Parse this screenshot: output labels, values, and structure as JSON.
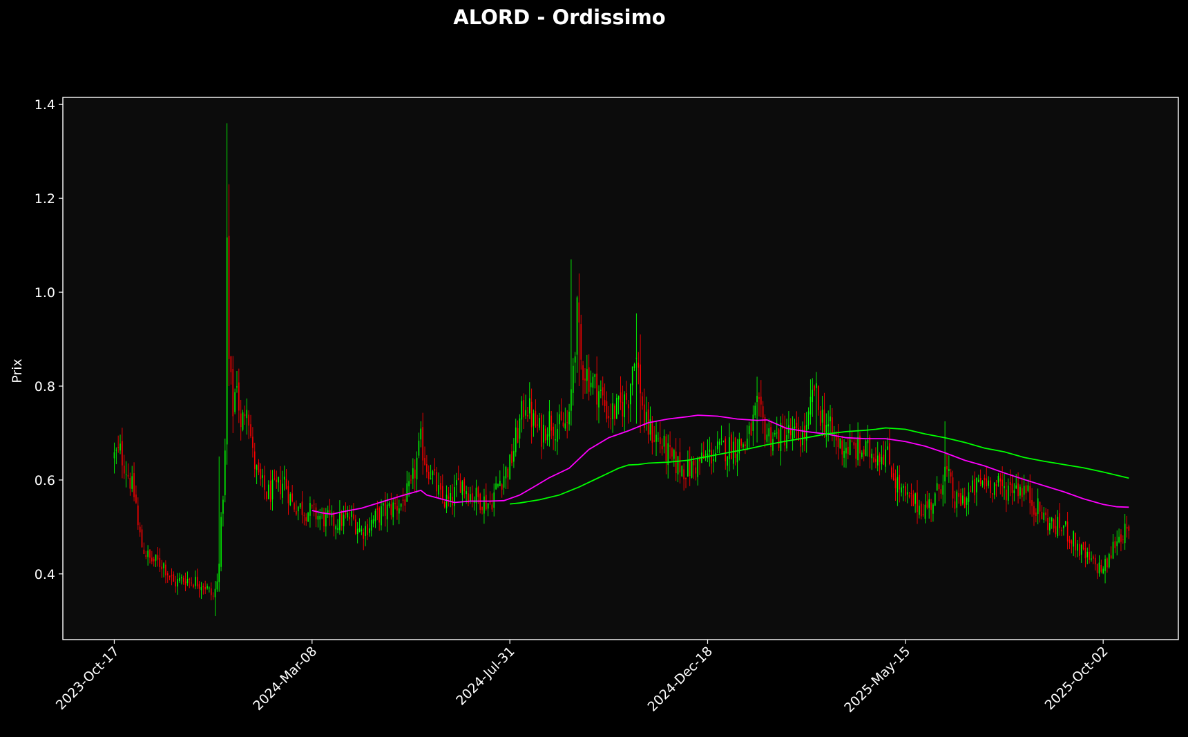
{
  "chart_data": {
    "type": "candlestick",
    "title": "ALORD - Ordissimo",
    "ylabel": "Prix",
    "xlabel": "",
    "ylim": [
      0.26,
      1.415
    ],
    "yticks": [
      0.4,
      0.6,
      0.8,
      1.0,
      1.2,
      1.4
    ],
    "ytick_labels": [
      "0.4",
      "0.6",
      "0.8",
      "1.0",
      "1.2",
      "1.4"
    ],
    "xticks": [
      "2023-Oct-17",
      "2024-Mar-08",
      "2024-Jul-31",
      "2024-Dec-18",
      "2025-May-15",
      "2025-Oct-02"
    ],
    "xlim_index": [
      -26,
      538
    ],
    "xtick_index": [
      0,
      100,
      200,
      300,
      400,
      500
    ],
    "grid": false,
    "colors": {
      "background": "#000000",
      "plot_background": "#0c0c0c",
      "up": "#00ff00",
      "down": "#ff0000",
      "ma_short": "#ff00ff",
      "ma_long": "#00ff00",
      "text": "#ffffff"
    },
    "anchors": [
      [
        0,
        0.65
      ],
      [
        3,
        0.66
      ],
      [
        8,
        0.6
      ],
      [
        11,
        0.55
      ],
      [
        12,
        0.5
      ],
      [
        14,
        0.46
      ],
      [
        18,
        0.43
      ],
      [
        25,
        0.42
      ],
      [
        30,
        0.38
      ],
      [
        36,
        0.39
      ],
      [
        45,
        0.38
      ],
      [
        50,
        0.35
      ],
      [
        52,
        0.38
      ],
      [
        54,
        0.5
      ],
      [
        56,
        0.65
      ],
      [
        57,
        1.1
      ],
      [
        58,
        0.85
      ],
      [
        60,
        0.75
      ],
      [
        62,
        0.82
      ],
      [
        64,
        0.7
      ],
      [
        67,
        0.78
      ],
      [
        70,
        0.65
      ],
      [
        73,
        0.6
      ],
      [
        77,
        0.57
      ],
      [
        82,
        0.58
      ],
      [
        86,
        0.6
      ],
      [
        90,
        0.55
      ],
      [
        95,
        0.54
      ],
      [
        100,
        0.53
      ],
      [
        110,
        0.51
      ],
      [
        120,
        0.52
      ],
      [
        125,
        0.49
      ],
      [
        135,
        0.53
      ],
      [
        145,
        0.55
      ],
      [
        150,
        0.58
      ],
      [
        155,
        0.68
      ],
      [
        158,
        0.63
      ],
      [
        160,
        0.62
      ],
      [
        165,
        0.56
      ],
      [
        170,
        0.55
      ],
      [
        175,
        0.6
      ],
      [
        180,
        0.57
      ],
      [
        185,
        0.56
      ],
      [
        190,
        0.55
      ],
      [
        195,
        0.6
      ],
      [
        200,
        0.63
      ],
      [
        205,
        0.72
      ],
      [
        208,
        0.77
      ],
      [
        212,
        0.72
      ],
      [
        216,
        0.7
      ],
      [
        220,
        0.73
      ],
      [
        225,
        0.71
      ],
      [
        230,
        0.72
      ],
      [
        232,
        0.85
      ],
      [
        234,
        0.95
      ],
      [
        236,
        0.85
      ],
      [
        240,
        0.82
      ],
      [
        245,
        0.79
      ],
      [
        250,
        0.74
      ],
      [
        255,
        0.75
      ],
      [
        260,
        0.78
      ],
      [
        263,
        0.88
      ],
      [
        266,
        0.8
      ],
      [
        268,
        0.72
      ],
      [
        272,
        0.7
      ],
      [
        276,
        0.68
      ],
      [
        282,
        0.64
      ],
      [
        290,
        0.62
      ],
      [
        300,
        0.65
      ],
      [
        310,
        0.67
      ],
      [
        320,
        0.68
      ],
      [
        325,
        0.75
      ],
      [
        330,
        0.7
      ],
      [
        335,
        0.69
      ],
      [
        340,
        0.7
      ],
      [
        345,
        0.69
      ],
      [
        350,
        0.7
      ],
      [
        354,
        0.8
      ],
      [
        356,
        0.75
      ],
      [
        360,
        0.72
      ],
      [
        365,
        0.68
      ],
      [
        370,
        0.67
      ],
      [
        380,
        0.66
      ],
      [
        390,
        0.66
      ],
      [
        395,
        0.6
      ],
      [
        400,
        0.56
      ],
      [
        405,
        0.55
      ],
      [
        410,
        0.54
      ],
      [
        415,
        0.56
      ],
      [
        420,
        0.62
      ],
      [
        422,
        0.6
      ],
      [
        425,
        0.55
      ],
      [
        430,
        0.56
      ],
      [
        435,
        0.58
      ],
      [
        440,
        0.6
      ],
      [
        445,
        0.59
      ],
      [
        450,
        0.58
      ],
      [
        455,
        0.59
      ],
      [
        460,
        0.58
      ],
      [
        465,
        0.55
      ],
      [
        470,
        0.52
      ],
      [
        475,
        0.5
      ],
      [
        480,
        0.5
      ],
      [
        485,
        0.47
      ],
      [
        490,
        0.44
      ],
      [
        495,
        0.42
      ],
      [
        500,
        0.41
      ],
      [
        503,
        0.43
      ],
      [
        506,
        0.47
      ],
      [
        510,
        0.49
      ],
      [
        513,
        0.48
      ]
    ],
    "spikes": [
      {
        "i": 57,
        "high": 1.36,
        "low": 0.7
      },
      {
        "i": 58,
        "high": 1.23,
        "low": 0.8
      },
      {
        "i": 53,
        "high": 0.65,
        "low": 0.42
      },
      {
        "i": 51,
        "high": 0.38,
        "low": 0.31
      },
      {
        "i": 231,
        "high": 1.07,
        "low": 0.75
      },
      {
        "i": 235,
        "high": 1.04,
        "low": 0.8
      },
      {
        "i": 264,
        "high": 0.955,
        "low": 0.72
      },
      {
        "i": 266,
        "high": 0.91,
        "low": 0.7
      },
      {
        "i": 325,
        "high": 0.82,
        "low": 0.68
      },
      {
        "i": 355,
        "high": 0.83,
        "low": 0.7
      },
      {
        "i": 420,
        "high": 0.725,
        "low": 0.55
      },
      {
        "i": 501,
        "high": 0.44,
        "low": 0.38
      }
    ],
    "series": [
      {
        "type": "line",
        "color": "#ff00ff",
        "points": [
          [
            100,
            0.535
          ],
          [
            105,
            0.53
          ],
          [
            110,
            0.527
          ],
          [
            115,
            0.532
          ],
          [
            125,
            0.54
          ],
          [
            135,
            0.553
          ],
          [
            145,
            0.566
          ],
          [
            155,
            0.578
          ],
          [
            158,
            0.568
          ],
          [
            165,
            0.56
          ],
          [
            172,
            0.552
          ],
          [
            180,
            0.555
          ],
          [
            190,
            0.555
          ],
          [
            197,
            0.556
          ],
          [
            205,
            0.568
          ],
          [
            212,
            0.585
          ],
          [
            220,
            0.605
          ],
          [
            230,
            0.625
          ],
          [
            240,
            0.665
          ],
          [
            250,
            0.69
          ],
          [
            260,
            0.705
          ],
          [
            270,
            0.722
          ],
          [
            280,
            0.73
          ],
          [
            290,
            0.735
          ],
          [
            295,
            0.738
          ],
          [
            305,
            0.736
          ],
          [
            315,
            0.73
          ],
          [
            325,
            0.727
          ],
          [
            330,
            0.728
          ],
          [
            340,
            0.71
          ],
          [
            350,
            0.703
          ],
          [
            360,
            0.698
          ],
          [
            370,
            0.69
          ],
          [
            380,
            0.688
          ],
          [
            390,
            0.688
          ],
          [
            400,
            0.682
          ],
          [
            410,
            0.672
          ],
          [
            420,
            0.658
          ],
          [
            430,
            0.642
          ],
          [
            440,
            0.63
          ],
          [
            450,
            0.615
          ],
          [
            460,
            0.601
          ],
          [
            470,
            0.588
          ],
          [
            480,
            0.575
          ],
          [
            490,
            0.56
          ],
          [
            500,
            0.548
          ],
          [
            507,
            0.543
          ],
          [
            513,
            0.542
          ]
        ]
      },
      {
        "type": "line",
        "color": "#00ff00",
        "points": [
          [
            200,
            0.549
          ],
          [
            205,
            0.551
          ],
          [
            215,
            0.558
          ],
          [
            225,
            0.568
          ],
          [
            235,
            0.585
          ],
          [
            245,
            0.605
          ],
          [
            255,
            0.625
          ],
          [
            260,
            0.632
          ],
          [
            265,
            0.633
          ],
          [
            270,
            0.636
          ],
          [
            280,
            0.638
          ],
          [
            290,
            0.642
          ],
          [
            300,
            0.65
          ],
          [
            310,
            0.658
          ],
          [
            320,
            0.666
          ],
          [
            330,
            0.675
          ],
          [
            340,
            0.683
          ],
          [
            350,
            0.69
          ],
          [
            360,
            0.698
          ],
          [
            370,
            0.703
          ],
          [
            380,
            0.706
          ],
          [
            385,
            0.708
          ],
          [
            390,
            0.711
          ],
          [
            400,
            0.708
          ],
          [
            410,
            0.698
          ],
          [
            420,
            0.69
          ],
          [
            430,
            0.68
          ],
          [
            440,
            0.668
          ],
          [
            450,
            0.66
          ],
          [
            460,
            0.648
          ],
          [
            470,
            0.64
          ],
          [
            480,
            0.633
          ],
          [
            490,
            0.626
          ],
          [
            500,
            0.617
          ],
          [
            507,
            0.61
          ],
          [
            513,
            0.604
          ]
        ]
      }
    ]
  }
}
